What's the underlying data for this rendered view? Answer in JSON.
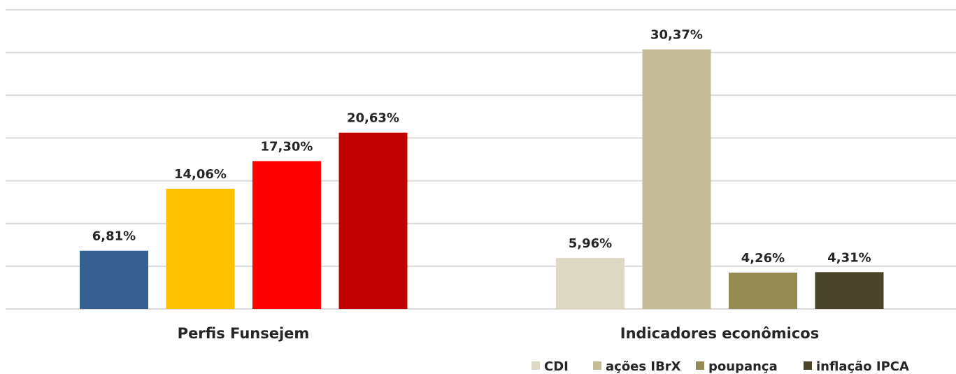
{
  "chart_data": {
    "type": "bar",
    "groups": [
      {
        "label": "Perfis Funsejem",
        "bars": [
          {
            "value": 6.81,
            "label": "6,81%",
            "color": "#376092"
          },
          {
            "value": 14.06,
            "label": "14,06%",
            "color": "#FFC000"
          },
          {
            "value": 17.3,
            "label": "17,30%",
            "color": "#FF0000"
          },
          {
            "value": 20.63,
            "label": "20,63%",
            "color": "#C00000"
          }
        ]
      },
      {
        "label": "Indicadores econômicos",
        "bars": [
          {
            "value": 5.96,
            "label": "5,96%",
            "color": "#DDD9C3",
            "series": "CDI"
          },
          {
            "value": 30.37,
            "label": "30,37%",
            "color": "#C4BD97",
            "series": "ações IBrX"
          },
          {
            "value": 4.26,
            "label": "4,26%",
            "color": "#948A54",
            "series": "poupança"
          },
          {
            "value": 4.31,
            "label": "4,31%",
            "color": "#4A452A",
            "series": "inflação IPCA"
          }
        ]
      }
    ],
    "legend": [
      {
        "name": "CDI",
        "color": "#DDD9C3"
      },
      {
        "name": "ações IBrX",
        "color": "#C4BD97"
      },
      {
        "name": "poupança",
        "color": "#948A54"
      },
      {
        "name": "inflação IPCA",
        "color": "#4A452A"
      }
    ],
    "ylim": [
      0,
      35
    ],
    "grid": true,
    "legend_position": "bottom-right"
  }
}
